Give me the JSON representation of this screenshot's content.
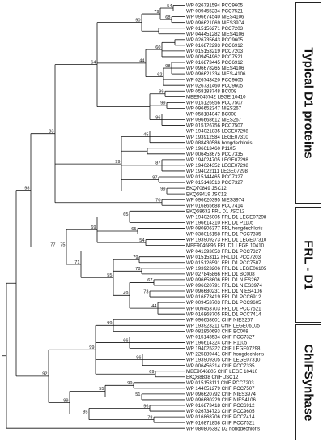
{
  "leaves": [
    "WP 026731594 PCC9605",
    "WP 009455234 PCC7521",
    "WP 096674540 NIES4106",
    "WP 096621069 NIES3974",
    "WP 015156271 PCC7203",
    "WP 044451282 NIES4106",
    "WP 026735643 PCC9605",
    "WP 016872293 PCC6912",
    "WP 015153219 PCC7203",
    "WP 009454962 PCC7521",
    "WP 016873445 PCC6912",
    "WP 096678265 NIES4106",
    "WP 096621334 NIES-4106",
    "WP 026743420 PCC9605",
    "WP 026731460 PCC9605",
    "WP 058183748 BC008",
    "MBE9045742 LEGE 10410",
    "WP 015126956 PCC7507",
    "WP 096652347 NIES267",
    "WP 058184047 BC008",
    "WP 096668612 NIES267",
    "WP 015126756 PCC7507",
    "WP 194021835 LEGE07298",
    "WP 193912584 LEGE07310",
    "WP 088430586 hongdechloris",
    "WP 196613460 P1105",
    "WP 006453675 PCC7335",
    "WP 194024705 LEGE07298",
    "WP 194024352 LEGE07298",
    "WP 194022111 LEGE07298",
    "WP 015144465 PCC7327",
    "WP 015143513 PCC7327",
    "EKQ70849 JSC12",
    "EKQ69419 JSC12",
    "WP 096620395 NIES3974",
    "WP 016865688 PCC7414",
    "EKQ68632 FRL D1 JSC12",
    "WP 194026005 FRL D1 LEGE07298",
    "WP 196614310 FRL D1 P1105",
    "WP 080806377 FRL hongdechloris",
    "WP 038016158 FRL D1 PCC7335",
    "WP 193909273 FRL D1 LEGE07310",
    "MBE9046896 FRL D1 LEGE 10410",
    "WP 041393053 FRL D1 PCC7327",
    "WP 015153112 FRL D1 PCC7203",
    "WP 015126591 FRL D1 PCC7507",
    "WP 193923206 FRL D1 LEGE06105",
    "WP 027845866 FRL D1 BC008",
    "WP 096658606 FRL D1 NIES267",
    "WP 096620791 FRL D1 NIES3974",
    "WP 096680231 FRL D1 NIES4106",
    "WP 016873419 FRL D1 PCC6912",
    "WP 009453703 FRL D1 PCC9605",
    "WP 009453703 FRL D1 PCC7521",
    "WP 016868705 FRL D1 PCC7414",
    "WP 096658601 ChlF NIES267",
    "WP 193923211 ChlF LEGE06105",
    "WP 082850693 ChlF BC008",
    "WP 015143534 ChlF PCC7327",
    "WP 196614324 ChlF P1105",
    "WP 194025222 ChlF LEGE07298",
    "WP 225889441 ChlF hongdechloris",
    "WP 193909305 ChlF LEGE07310",
    "WP 006456314 ChlF PCC7335",
    "MBE9046805 ChlF LEGE 10410",
    "EKQ68838 ChlF JSC12",
    "WP 015153111 ChlF PCC7203",
    "WP 144051279 ChlF PCC7507",
    "WP 096620792 ChlF NIES3974",
    "WP 096680229 ChlF NIES4106",
    "WP 016873418 ChlF PCC6912",
    "WP 026734723 ChlF PCC9605",
    "WP 016868706 ChlF PCC7414",
    "WP 016871858 ChlF PCC7521",
    "WP 080806382 D2 hongdechloris"
  ],
  "bootstrap": [
    "54",
    "68",
    "79",
    "90",
    "60",
    "98",
    "62",
    "44",
    "99",
    "99",
    "96",
    "45",
    "87",
    "97",
    "99",
    "99",
    "99",
    "70",
    "64",
    "83",
    "65",
    "65",
    "54",
    "69",
    "79",
    "71",
    "78",
    "67",
    "73",
    "44",
    "49",
    "55",
    "75",
    "77",
    "98",
    "99",
    "66",
    "96",
    "69",
    "99",
    "99",
    "51",
    "55",
    "96",
    "78",
    "85",
    "99",
    "92",
    "99",
    "98"
  ],
  "groups": [
    {
      "label": "Typical D1 proteins"
    },
    {
      "label": "FRL - D1"
    },
    {
      "label": "ChlFSynhase"
    }
  ]
}
